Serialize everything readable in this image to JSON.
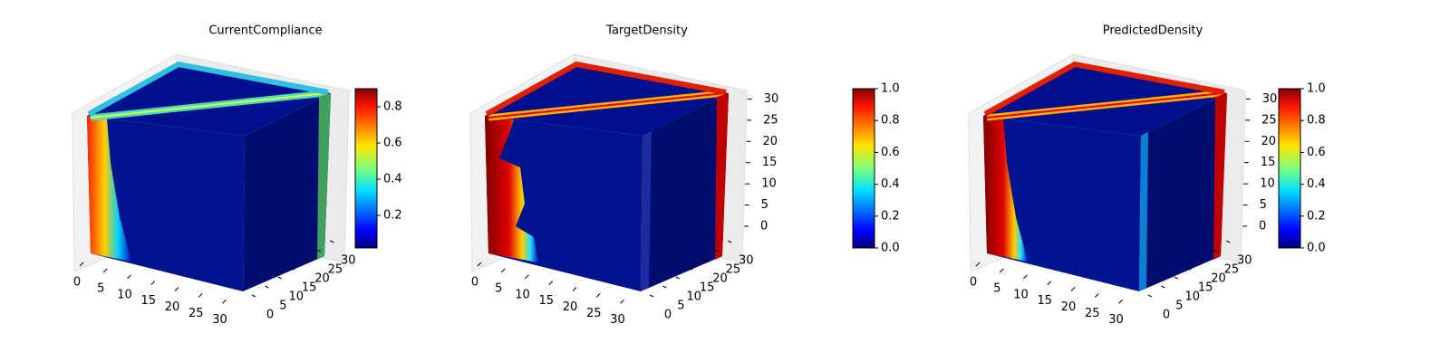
{
  "chart_data": [
    {
      "type": "voxel3d",
      "title": "CurrentCompliance",
      "xlim": [
        0,
        32
      ],
      "xticks": [
        0,
        5,
        10,
        15,
        20,
        25,
        30
      ],
      "ylim": [
        0,
        32
      ],
      "yticks": [
        0,
        5,
        10,
        15,
        20,
        25,
        30
      ],
      "colormap": "jet",
      "clim": [
        0.02,
        0.9
      ],
      "cticks": [
        0.2,
        0.4,
        0.6,
        0.8
      ]
    },
    {
      "type": "voxel3d",
      "title": "TargetDensity",
      "xlim": [
        0,
        32
      ],
      "xticks": [
        0,
        5,
        10,
        15,
        20,
        25,
        30
      ],
      "ylim": [
        0,
        32
      ],
      "yticks": [
        0,
        5,
        10,
        15,
        20,
        25,
        30
      ],
      "zlim": [
        0,
        32
      ],
      "zticks": [
        0,
        5,
        10,
        15,
        20,
        25,
        30
      ],
      "colormap": "jet",
      "clim": [
        0,
        1
      ],
      "cticks": [
        {
          "value": 0,
          "label": "0.0"
        },
        0.2,
        0.4,
        0.6,
        0.8,
        {
          "value": 1,
          "label": "1.0"
        }
      ]
    },
    {
      "type": "voxel3d",
      "title": "PredictedDensity",
      "xlim": [
        0,
        32
      ],
      "xticks": [
        0,
        5,
        10,
        15,
        20,
        25,
        30
      ],
      "ylim": [
        0,
        32
      ],
      "yticks": [
        0,
        5,
        10,
        15,
        20,
        25,
        30
      ],
      "zlim": [
        0,
        32
      ],
      "zticks": [
        0,
        5,
        10,
        15,
        20,
        25,
        30
      ],
      "colormap": "jet",
      "clim": [
        0,
        1
      ],
      "cticks": [
        {
          "value": 0,
          "label": "0.0"
        },
        0.2,
        0.4,
        0.6,
        0.8,
        {
          "value": 1,
          "label": "1.0"
        }
      ]
    }
  ]
}
